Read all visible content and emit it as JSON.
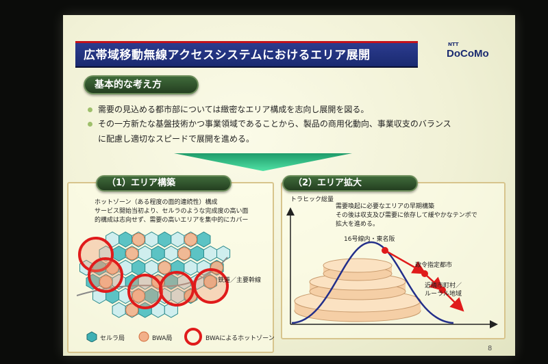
{
  "slide": {
    "title": "広帯域移動無線アクセスシステムにおけるエリア展開",
    "logo_ntt": "NTT",
    "logo": "DoCoMo",
    "page_number": "8"
  },
  "basic": {
    "heading": "基本的な考え方",
    "bullets": [
      "需要の見込める都市部については緻密なエリア構成を志向し展開を図る。",
      "その一方新たな基盤技術かつ事業領域であることから、製品の商用化動向、事業収支のバランス",
      "に配慮し適切なスピードで展開を進める。"
    ]
  },
  "left_panel": {
    "heading": "（1）エリア構築",
    "desc_lines": [
      "ホットゾーン（ある程度の面的連続性）構成",
      "サービス開始当初より、セルラのような完成度の高い面",
      "的構成は志向せず、需要の高いエリアを集中的にカバー"
    ],
    "railway_label": "鉄道／主要幹線",
    "legend": [
      "セルラ局",
      "BWA局",
      "BWAによるホットゾーン"
    ]
  },
  "right_panel": {
    "heading": "（2）エリア拡大",
    "y_axis_label": "トラヒック総量",
    "desc_lines": [
      "需要喚起に必要なエリアの早期構築",
      "その後は収支及び需要に依存して緩やかなテンポで",
      "拡大を進める。"
    ],
    "stage_labels": [
      "16号線内・東名阪",
      "政令指定都市",
      "近隣市町村／",
      "ルーラル地域"
    ]
  },
  "colors": {
    "title_bar": "#1a2a70",
    "accent_red": "#c4121b",
    "pill_green": "#2f5029",
    "arrow_green": "#2bbf83",
    "hex_teal": "#3fb0b4",
    "bwa_orange": "#e58a5a",
    "curve_blue": "#232f8a"
  }
}
